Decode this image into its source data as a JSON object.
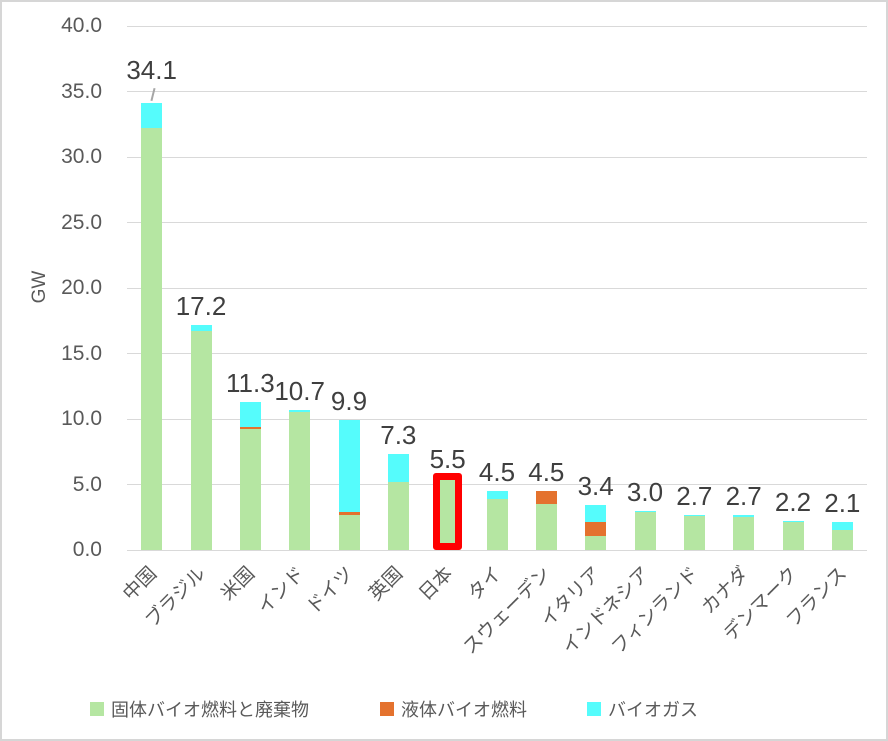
{
  "chart_data": {
    "type": "bar",
    "stacked": true,
    "title": "",
    "xlabel": "",
    "ylabel": "GW",
    "ylim": [
      0,
      40
    ],
    "ytick_step": 5,
    "ytick_labels": [
      "0.0",
      "5.0",
      "10.0",
      "15.0",
      "20.0",
      "25.0",
      "30.0",
      "35.0",
      "40.0"
    ],
    "grid": true,
    "legend_position": "bottom",
    "categories": [
      "中国",
      "ブラジル",
      "米国",
      "インド",
      "ドイツ",
      "英国",
      "日本",
      "タイ",
      "スウェーデン",
      "イタリア",
      "インドネシア",
      "フィンランド",
      "カナダ",
      "デンマーク",
      "フランス"
    ],
    "totals": [
      34.1,
      17.2,
      11.3,
      10.7,
      9.9,
      7.3,
      5.5,
      4.5,
      4.5,
      3.4,
      3.0,
      2.7,
      2.7,
      2.2,
      2.1
    ],
    "total_labels": [
      "34.1",
      "17.2",
      "11.3",
      "10.7",
      "9.9",
      "7.3",
      "5.5",
      "4.5",
      "4.5",
      "3.4",
      "3.0",
      "2.7",
      "2.7",
      "2.2",
      "2.1"
    ],
    "series": [
      {
        "id": "solid-biofuel-waste",
        "name": "固体バイオ燃料と廃棄物",
        "color": "#b5e6a2",
        "values": [
          32.2,
          16.7,
          9.2,
          10.5,
          2.7,
          5.2,
          5.5,
          3.9,
          3.5,
          1.1,
          2.9,
          2.6,
          2.5,
          2.1,
          1.5
        ]
      },
      {
        "id": "liquid-biofuel",
        "name": "液体バイオ燃料",
        "color": "#e4722e",
        "values": [
          0,
          0,
          0.2,
          0,
          0.2,
          0,
          0,
          0,
          1.0,
          1.0,
          0,
          0,
          0,
          0,
          0
        ]
      },
      {
        "id": "biogas",
        "name": "バイオガス",
        "color": "#55fcfc",
        "values": [
          1.9,
          0.5,
          1.9,
          0.2,
          7.0,
          2.1,
          0,
          0.6,
          0,
          1.3,
          0.1,
          0.1,
          0.2,
          0.1,
          0.6
        ]
      }
    ],
    "highlight": {
      "index": 6,
      "category": "日本",
      "color": "#ff0000"
    },
    "leader_line_index": 0,
    "colors": {
      "gridline": "#d9d9d9",
      "axis_text": "#595959",
      "data_label_text": "#3f3f3f",
      "highlight": "#ff0000",
      "background": "#ffffff"
    }
  }
}
